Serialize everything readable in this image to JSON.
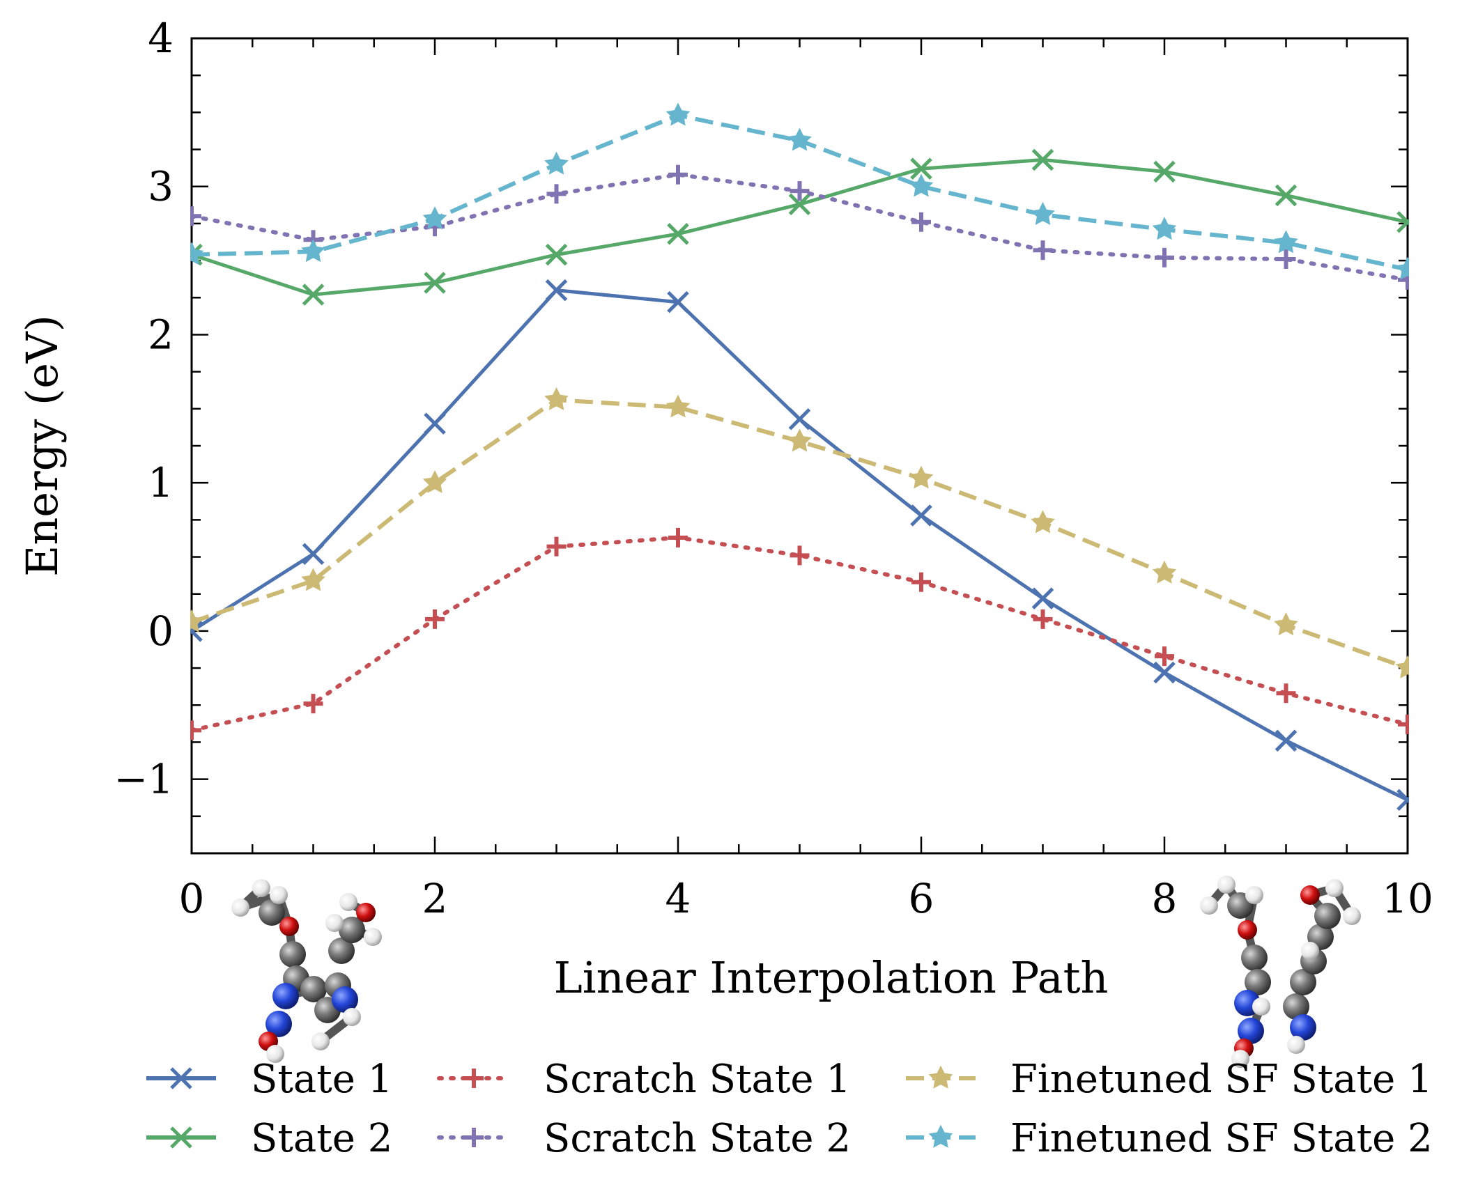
{
  "chart_data": {
    "type": "line",
    "title": "",
    "xlabel": "Linear Interpolation Path",
    "ylabel": "Energy (eV)",
    "xlim": [
      0,
      10
    ],
    "ylim": [
      -1.5,
      4
    ],
    "x_ticks": [
      0,
      2,
      4,
      6,
      8,
      10
    ],
    "x_tick_labels": [
      "0",
      "2",
      "4",
      "6",
      "8",
      "10"
    ],
    "y_ticks": [
      -1,
      0,
      1,
      2,
      3,
      4
    ],
    "y_tick_labels": [
      "−1",
      "0",
      "1",
      "2",
      "3",
      "4"
    ],
    "grid": false,
    "legend_position": "bottom",
    "x": [
      0,
      1,
      2,
      3,
      4,
      5,
      6,
      7,
      8,
      9,
      10
    ],
    "series": [
      {
        "name": "State 1",
        "color": "#4C72B0",
        "line_style": "solid",
        "marker": "x",
        "values": [
          0.0,
          0.52,
          1.4,
          2.3,
          2.22,
          1.43,
          0.78,
          0.22,
          -0.28,
          -0.74,
          -1.14
        ]
      },
      {
        "name": "State 2",
        "color": "#55A868",
        "line_style": "solid",
        "marker": "x",
        "values": [
          2.54,
          2.27,
          2.35,
          2.54,
          2.68,
          2.88,
          3.12,
          3.18,
          3.1,
          2.94,
          2.76
        ]
      },
      {
        "name": "Scratch State 1",
        "color": "#C44E52",
        "line_style": "dotted",
        "marker": "plus",
        "values": [
          -0.67,
          -0.49,
          0.08,
          0.57,
          0.63,
          0.51,
          0.33,
          0.08,
          -0.17,
          -0.42,
          -0.63
        ]
      },
      {
        "name": "Scratch State 2",
        "color": "#8172B2",
        "line_style": "dotted",
        "marker": "plus",
        "values": [
          2.8,
          2.64,
          2.73,
          2.95,
          3.08,
          2.97,
          2.76,
          2.57,
          2.52,
          2.51,
          2.37
        ]
      },
      {
        "name": "Finetuned SF State 1",
        "color": "#CCB974",
        "line_style": "dashed",
        "marker": "star",
        "values": [
          0.06,
          0.34,
          1.0,
          1.56,
          1.51,
          1.28,
          1.03,
          0.73,
          0.39,
          0.04,
          -0.25
        ]
      },
      {
        "name": "Finetuned SF State 2",
        "color": "#64B5CD",
        "line_style": "dashed",
        "marker": "star",
        "values": [
          2.54,
          2.56,
          2.78,
          3.15,
          3.48,
          3.31,
          3.0,
          2.81,
          2.71,
          2.62,
          2.44
        ]
      }
    ],
    "insets": [
      {
        "name": "molecule-structure-start",
        "description_icon": "ball-and-stick-molecule-icon"
      },
      {
        "name": "molecule-structure-end",
        "description_icon": "ball-and-stick-molecule-icon"
      }
    ]
  }
}
